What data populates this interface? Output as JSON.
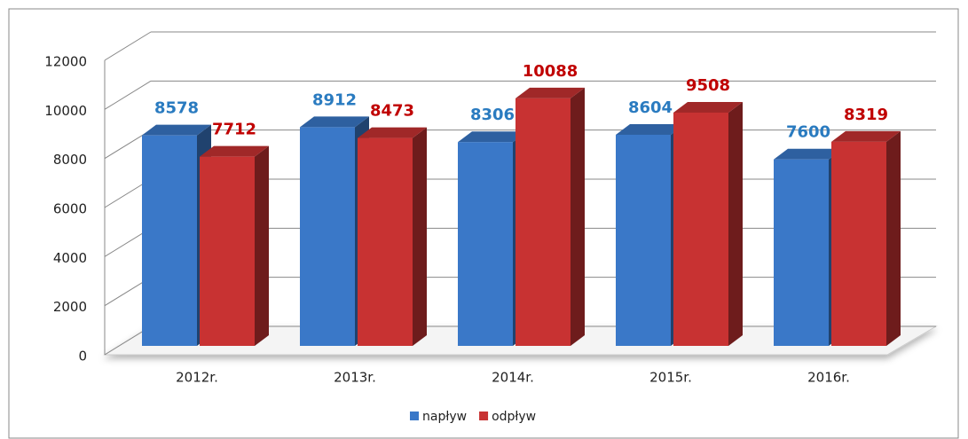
{
  "chart_data": {
    "type": "bar3d",
    "categories": [
      "2012r.",
      "2013r.",
      "2014r.",
      "2015r.",
      "2016r."
    ],
    "series": [
      {
        "name": "napływ",
        "color": "#3a78c8",
        "label_color": "#2a7bc0",
        "values": [
          8578,
          8912,
          8306,
          8604,
          7600
        ]
      },
      {
        "name": "odpływ",
        "color": "#c83232",
        "label_color": "#c00000",
        "values": [
          7712,
          8473,
          10088,
          9508,
          8319
        ]
      }
    ],
    "ylim": [
      0,
      12000
    ],
    "yticks": [
      0,
      2000,
      4000,
      6000,
      8000,
      10000,
      12000
    ],
    "grid": true,
    "legend": "bottom"
  }
}
